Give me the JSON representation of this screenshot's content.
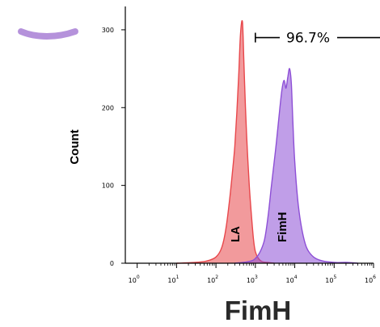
{
  "chart_data": {
    "type": "area",
    "xscale": "log",
    "xlabel": "FimH",
    "ylabel": "Count",
    "xlim": [
      0.5,
      1000000
    ],
    "ylim": [
      0,
      330
    ],
    "y_ticks": [
      {
        "value": 0,
        "label": "0"
      },
      {
        "value": 100,
        "label": "100"
      },
      {
        "value": 200,
        "label": "200"
      },
      {
        "value": 300,
        "label": "300"
      }
    ],
    "x_ticks": [
      {
        "exp": 0,
        "label": "0"
      },
      {
        "exp": 1,
        "label": "1"
      },
      {
        "exp": 2,
        "label": "2"
      },
      {
        "exp": 3,
        "label": "3"
      },
      {
        "exp": 4,
        "label": "4"
      },
      {
        "exp": 5,
        "label": "5"
      },
      {
        "exp": 6,
        "label": "6"
      }
    ],
    "series": [
      {
        "name": "LA",
        "color": "#e8474b",
        "x": [
          10,
          30,
          60,
          100,
          140,
          180,
          220,
          260,
          300,
          340,
          380,
          420,
          470,
          510,
          560,
          620,
          700,
          800,
          900,
          1000,
          1200,
          1500,
          2000,
          3000
        ],
        "y": [
          0,
          1,
          3,
          8,
          20,
          45,
          80,
          115,
          150,
          195,
          245,
          295,
          310,
          260,
          200,
          150,
          100,
          60,
          30,
          15,
          6,
          2,
          1,
          0
        ]
      },
      {
        "name": "FimH",
        "color": "#8d4fd6",
        "x": [
          300,
          500,
          800,
          1000,
          1300,
          1700,
          2100,
          2500,
          3000,
          3500,
          4200,
          4800,
          5400,
          6000,
          6700,
          7400,
          8200,
          9000,
          10000,
          12000,
          15000,
          20000,
          30000,
          50000,
          100000,
          200000,
          400000
        ],
        "y": [
          0,
          1,
          3,
          6,
          14,
          30,
          60,
          95,
          130,
          160,
          200,
          225,
          235,
          225,
          240,
          250,
          230,
          180,
          130,
          80,
          45,
          20,
          8,
          3,
          1,
          1,
          0
        ]
      }
    ],
    "gate": {
      "label": "96.7%",
      "from": 1000,
      "to": 1000000,
      "y": 290
    }
  }
}
